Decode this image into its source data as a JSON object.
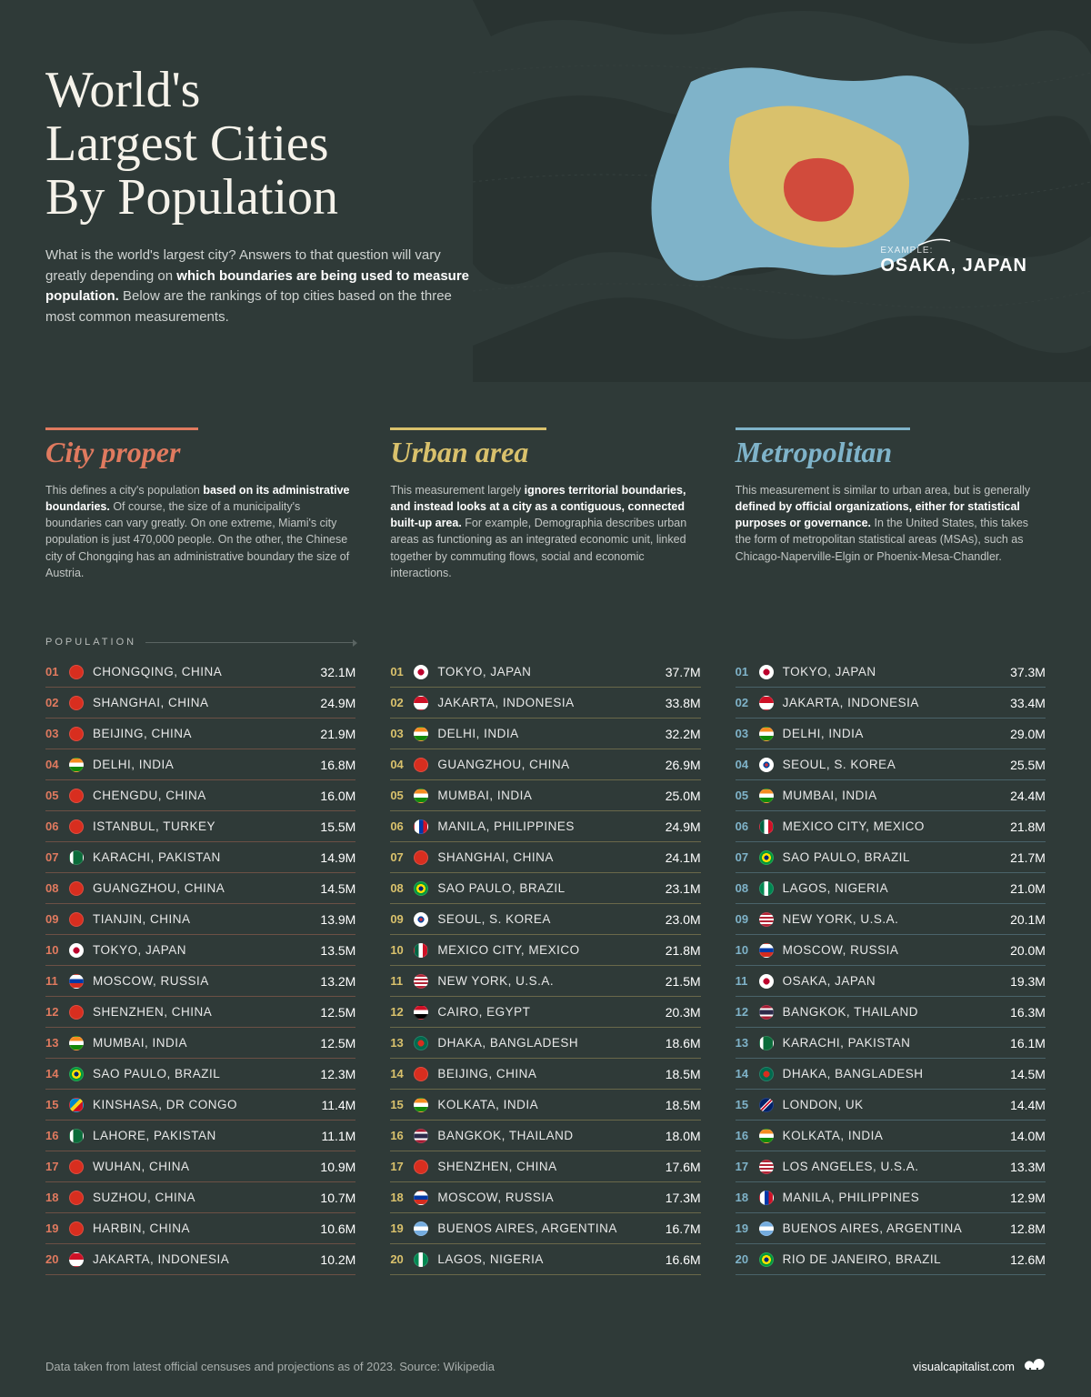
{
  "title": "World's\nLargest Cities\nBy Population",
  "intro_pre": "What is the world's largest city? Answers to that question will vary greatly depending on ",
  "intro_bold": "which boundaries are being used to measure population.",
  "intro_post": " Below are the rankings of top cities based on the three most common measurements.",
  "example_tag": "EXAMPLE:",
  "example_city": "OSAKA, JAPAN",
  "pop_header_label": "POPULATION",
  "map_colors": {
    "metro": "#7fb3c9",
    "urban": "#d9c16c",
    "proper": "#d14b3c"
  },
  "flag_palette": {
    "CN": "#d82e1f",
    "IN": "linear-gradient(#f58b1f 33%,#fff 33% 66%,#138808 66%)",
    "TR": "#d82e1f",
    "PK": "linear-gradient(90deg,#fff 25%,#0b6b3a 25%)",
    "JP": "radial-gradient(circle,#bc002d 35%,#fff 36%)",
    "RU": "linear-gradient(#fff 33%,#0039a6 33% 66%,#d52b1e 66%)",
    "BR": "radial-gradient(circle,#002776 25%,#fedf00 26% 50%,#009739 51%)",
    "CD": "linear-gradient(135deg,#0085cc 40%,#f7d518 40% 60%,#ce1021 60%)",
    "ID": "linear-gradient(#ce1126 50%,#fff 50%)",
    "PH": "linear-gradient(90deg,#fff 35%,#0038a8 35% 67%,#ce1126 67%)",
    "KR": "radial-gradient(circle,#cd2e3a 18%,#0047a0 18% 35%,#fff 36%)",
    "MX": "linear-gradient(90deg,#006341 33%,#fff 33% 66%,#ce1126 66%)",
    "US": "repeating-linear-gradient(#b22234 0 2px,#fff 2px 4px)",
    "EG": "linear-gradient(#ce1126 33%,#fff 33% 66%,#000 66%)",
    "BD": "radial-gradient(circle,#d82e1f 35%,#006a4e 36%)",
    "TH": "linear-gradient(#a51931 17%,#fff 17% 33%,#2d2a4a 33% 67%,#fff 67% 83%,#a51931 83%)",
    "AR": "linear-gradient(#74acdf 33%,#fff 33% 66%,#74acdf 66%)",
    "NG": "linear-gradient(90deg,#008751 33%,#fff 33% 66%,#008751 66%)",
    "GB": "linear-gradient(135deg,#012169 40%,#fff 40% 45%,#c8102e 45% 55%,#fff 55% 60%,#012169 60%)"
  },
  "sections": {
    "proper": {
      "title": "City proper",
      "color": "#e07a5f",
      "desc_pre": "This defines a city's population ",
      "desc_bold": "based on its administrative boundaries.",
      "desc_post": " Of course, the size of a municipality's boundaries can vary greatly. On one extreme, Miami's city population is just 470,000 people. On the other, the Chinese city of Chongqing has an administrative boundary the size of Austria.",
      "rows": [
        {
          "rank": "01",
          "flag": "CN",
          "name": "CHONGQING, CHINA",
          "pop": "32.1M"
        },
        {
          "rank": "02",
          "flag": "CN",
          "name": "SHANGHAI, CHINA",
          "pop": "24.9M"
        },
        {
          "rank": "03",
          "flag": "CN",
          "name": "BEIJING, CHINA",
          "pop": "21.9M"
        },
        {
          "rank": "04",
          "flag": "IN",
          "name": "DELHI, INDIA",
          "pop": "16.8M"
        },
        {
          "rank": "05",
          "flag": "CN",
          "name": "CHENGDU, CHINA",
          "pop": "16.0M"
        },
        {
          "rank": "06",
          "flag": "TR",
          "name": "ISTANBUL, TURKEY",
          "pop": "15.5M"
        },
        {
          "rank": "07",
          "flag": "PK",
          "name": "KARACHI, PAKISTAN",
          "pop": "14.9M"
        },
        {
          "rank": "08",
          "flag": "CN",
          "name": "GUANGZHOU, CHINA",
          "pop": "14.5M"
        },
        {
          "rank": "09",
          "flag": "CN",
          "name": "TIANJIN, CHINA",
          "pop": "13.9M"
        },
        {
          "rank": "10",
          "flag": "JP",
          "name": "TOKYO, JAPAN",
          "pop": "13.5M"
        },
        {
          "rank": "11",
          "flag": "RU",
          "name": "MOSCOW, RUSSIA",
          "pop": "13.2M"
        },
        {
          "rank": "12",
          "flag": "CN",
          "name": "SHENZHEN, CHINA",
          "pop": "12.5M"
        },
        {
          "rank": "13",
          "flag": "IN",
          "name": "MUMBAI, INDIA",
          "pop": "12.5M"
        },
        {
          "rank": "14",
          "flag": "BR",
          "name": "SAO PAULO, BRAZIL",
          "pop": "12.3M"
        },
        {
          "rank": "15",
          "flag": "CD",
          "name": "KINSHASA, DR CONGO",
          "pop": "11.4M"
        },
        {
          "rank": "16",
          "flag": "PK",
          "name": "LAHORE, PAKISTAN",
          "pop": "11.1M"
        },
        {
          "rank": "17",
          "flag": "CN",
          "name": "WUHAN, CHINA",
          "pop": "10.9M"
        },
        {
          "rank": "18",
          "flag": "CN",
          "name": "SUZHOU, CHINA",
          "pop": "10.7M"
        },
        {
          "rank": "19",
          "flag": "CN",
          "name": "HARBIN, CHINA",
          "pop": "10.6M"
        },
        {
          "rank": "20",
          "flag": "ID",
          "name": "JAKARTA, INDONESIA",
          "pop": "10.2M"
        }
      ]
    },
    "urban": {
      "title": "Urban area",
      "color": "#d9c16c",
      "desc_pre": "This measurement largely ",
      "desc_bold": "ignores territorial boundaries, and instead looks at a city as a contiguous, connected built-up area.",
      "desc_post": " For example, Demographia describes urban areas as functioning as an integrated economic unit, linked together by commuting flows, social and economic interactions.",
      "rows": [
        {
          "rank": "01",
          "flag": "JP",
          "name": "TOKYO, JAPAN",
          "pop": "37.7M"
        },
        {
          "rank": "02",
          "flag": "ID",
          "name": "JAKARTA, INDONESIA",
          "pop": "33.8M"
        },
        {
          "rank": "03",
          "flag": "IN",
          "name": "DELHI, INDIA",
          "pop": "32.2M"
        },
        {
          "rank": "04",
          "flag": "CN",
          "name": "GUANGZHOU, CHINA",
          "pop": "26.9M"
        },
        {
          "rank": "05",
          "flag": "IN",
          "name": "MUMBAI, INDIA",
          "pop": "25.0M"
        },
        {
          "rank": "06",
          "flag": "PH",
          "name": "MANILA, PHILIPPINES",
          "pop": "24.9M"
        },
        {
          "rank": "07",
          "flag": "CN",
          "name": "SHANGHAI, CHINA",
          "pop": "24.1M"
        },
        {
          "rank": "08",
          "flag": "BR",
          "name": "SAO PAULO, BRAZIL",
          "pop": "23.1M"
        },
        {
          "rank": "09",
          "flag": "KR",
          "name": "SEOUL, S. KOREA",
          "pop": "23.0M"
        },
        {
          "rank": "10",
          "flag": "MX",
          "name": "MEXICO CITY, MEXICO",
          "pop": "21.8M"
        },
        {
          "rank": "11",
          "flag": "US",
          "name": "NEW YORK, U.S.A.",
          "pop": "21.5M"
        },
        {
          "rank": "12",
          "flag": "EG",
          "name": "CAIRO, EGYPT",
          "pop": "20.3M"
        },
        {
          "rank": "13",
          "flag": "BD",
          "name": "DHAKA, BANGLADESH",
          "pop": "18.6M"
        },
        {
          "rank": "14",
          "flag": "CN",
          "name": "BEIJING, CHINA",
          "pop": "18.5M"
        },
        {
          "rank": "15",
          "flag": "IN",
          "name": "KOLKATA, INDIA",
          "pop": "18.5M"
        },
        {
          "rank": "16",
          "flag": "TH",
          "name": "BANGKOK, THAILAND",
          "pop": "18.0M"
        },
        {
          "rank": "17",
          "flag": "CN",
          "name": "SHENZHEN, CHINA",
          "pop": "17.6M"
        },
        {
          "rank": "18",
          "flag": "RU",
          "name": "MOSCOW, RUSSIA",
          "pop": "17.3M"
        },
        {
          "rank": "19",
          "flag": "AR",
          "name": "BUENOS AIRES, ARGENTINA",
          "pop": "16.7M"
        },
        {
          "rank": "20",
          "flag": "NG",
          "name": "LAGOS, NIGERIA",
          "pop": "16.6M"
        }
      ]
    },
    "metro": {
      "title": "Metropolitan",
      "color": "#7fb3c9",
      "desc_pre": "This measurement is similar to urban area, but is generally ",
      "desc_bold": "defined by official organizations, either for statistical purposes or governance.",
      "desc_post": " In the United States, this takes the form of metropolitan statistical areas (MSAs), such as Chicago-Naperville-Elgin or Phoenix-Mesa-Chandler.",
      "rows": [
        {
          "rank": "01",
          "flag": "JP",
          "name": "TOKYO, JAPAN",
          "pop": "37.3M"
        },
        {
          "rank": "02",
          "flag": "ID",
          "name": "JAKARTA, INDONESIA",
          "pop": "33.4M"
        },
        {
          "rank": "03",
          "flag": "IN",
          "name": "DELHI, INDIA",
          "pop": "29.0M"
        },
        {
          "rank": "04",
          "flag": "KR",
          "name": "SEOUL, S. KOREA",
          "pop": "25.5M"
        },
        {
          "rank": "05",
          "flag": "IN",
          "name": "MUMBAI, INDIA",
          "pop": "24.4M"
        },
        {
          "rank": "06",
          "flag": "MX",
          "name": "MEXICO CITY, MEXICO",
          "pop": "21.8M"
        },
        {
          "rank": "07",
          "flag": "BR",
          "name": "SAO PAULO, BRAZIL",
          "pop": "21.7M"
        },
        {
          "rank": "08",
          "flag": "NG",
          "name": "LAGOS, NIGERIA",
          "pop": "21.0M"
        },
        {
          "rank": "09",
          "flag": "US",
          "name": "NEW YORK, U.S.A.",
          "pop": "20.1M"
        },
        {
          "rank": "10",
          "flag": "RU",
          "name": "MOSCOW, RUSSIA",
          "pop": "20.0M"
        },
        {
          "rank": "11",
          "flag": "JP",
          "name": "OSAKA, JAPAN",
          "pop": "19.3M"
        },
        {
          "rank": "12",
          "flag": "TH",
          "name": "BANGKOK, THAILAND",
          "pop": "16.3M"
        },
        {
          "rank": "13",
          "flag": "PK",
          "name": "KARACHI, PAKISTAN",
          "pop": "16.1M"
        },
        {
          "rank": "14",
          "flag": "BD",
          "name": "DHAKA, BANGLADESH",
          "pop": "14.5M"
        },
        {
          "rank": "15",
          "flag": "GB",
          "name": "LONDON, UK",
          "pop": "14.4M"
        },
        {
          "rank": "16",
          "flag": "IN",
          "name": "KOLKATA, INDIA",
          "pop": "14.0M"
        },
        {
          "rank": "17",
          "flag": "US",
          "name": "LOS ANGELES, U.S.A.",
          "pop": "13.3M"
        },
        {
          "rank": "18",
          "flag": "PH",
          "name": "MANILA, PHILIPPINES",
          "pop": "12.9M"
        },
        {
          "rank": "19",
          "flag": "AR",
          "name": "BUENOS AIRES, ARGENTINA",
          "pop": "12.8M"
        },
        {
          "rank": "20",
          "flag": "BR",
          "name": "RIO DE JANEIRO, BRAZIL",
          "pop": "12.6M"
        }
      ]
    }
  },
  "footer_source": "Data taken from latest official censuses and projections as of 2023. Source: Wikipedia",
  "footer_brand": "visualcapitalist.com"
}
